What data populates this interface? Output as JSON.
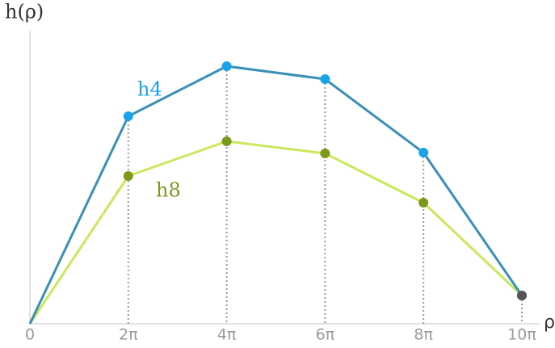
{
  "chart_data": {
    "type": "line",
    "y_label": "h(ρ)",
    "x_label": "ρ",
    "x": [
      0,
      2,
      4,
      6,
      8,
      10
    ],
    "series": [
      {
        "name": "h4",
        "color": "#3a8fb7",
        "marker_color": "#1aa3e8",
        "values": [
          0,
          257,
          319,
          303,
          212,
          35
        ]
      },
      {
        "name": "h8",
        "color": "#c9e85c",
        "marker_color": "#7a9a1e",
        "values": [
          0,
          183,
          226,
          211,
          150,
          35
        ]
      }
    ],
    "endpoint_color": "#555555",
    "xlim": [
      0,
      10
    ],
    "xticks": [
      0,
      {
        "value": 2,
        "label": "2π"
      },
      {
        "value": 4,
        "label": "4π"
      },
      {
        "value": 6,
        "label": "6π"
      },
      {
        "value": 8,
        "label": "8π"
      },
      {
        "value": 10,
        "label": "10π"
      }
    ],
    "ylim": [
      0,
      360
    ]
  }
}
